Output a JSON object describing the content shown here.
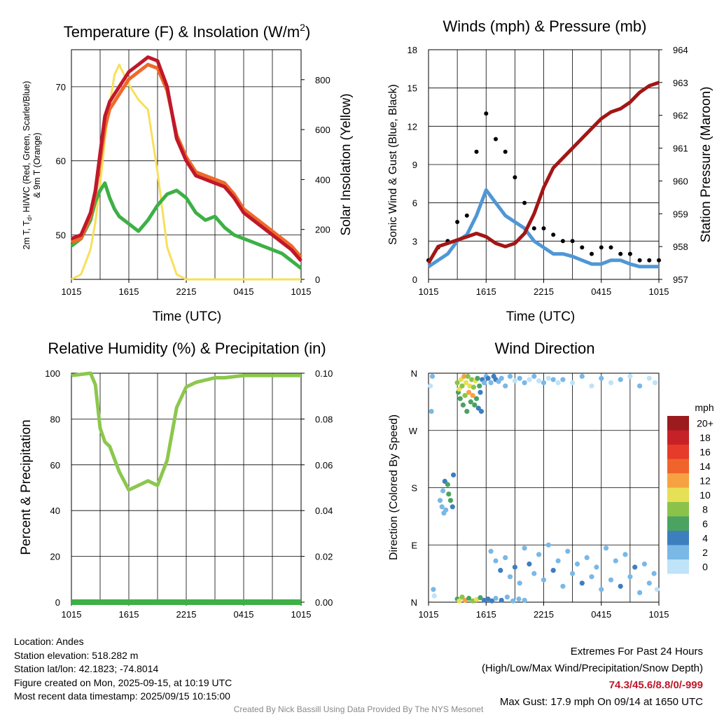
{
  "panels": {
    "temperature": {
      "title_main": "Temperature (F) & Insolation (W/m",
      "title_sup": "2",
      "title_end": ")",
      "ylabel_line1_a": "2m T, T",
      "ylabel_line1_sub": "d",
      "ylabel_line1_b": ", HI/WC (Red, Green, Scarlet/Blue)",
      "ylabel_line2": "& 9m T (Orange)",
      "ylabel_right": "Solar Insolation (Yellow)",
      "xlabel": "Time (UTC)"
    },
    "winds": {
      "title": "Winds (mph) & Pressure (mb)",
      "ylabel_left": "Sonic Wind & Gust (Blue, Black)",
      "ylabel_right": "Station Pressure (Maroon)",
      "xlabel": "Time (UTC)"
    },
    "humidity": {
      "title": "Relative Humidity (%) & Precipitation (in)",
      "ylabel": "Percent & Precipitation"
    },
    "direction": {
      "title": "Wind Direction",
      "ylabel": "Direction (Colored By Speed)",
      "legend_title": "mph"
    }
  },
  "chart_data": [
    {
      "type": "line",
      "title": "Temperature (F) & Insolation (W/m2)",
      "xlabel": "Time (UTC)",
      "ylabel": "2m T, Td, HI/WC (Red, Green, Scarlet/Blue) & 9m T (Orange)",
      "y2label": "Solar Insolation (Yellow)",
      "x_ticks": [
        "1015",
        "1615",
        "2215",
        "0415",
        "1015"
      ],
      "ylim": [
        44,
        75
      ],
      "y_ticks": [
        50,
        60,
        70
      ],
      "y2lim": [
        0,
        920
      ],
      "y2_ticks": [
        0,
        200,
        400,
        600,
        800
      ],
      "grid": true,
      "x_hours": [
        0,
        1,
        2,
        2.5,
        3,
        3.5,
        4,
        4.5,
        5,
        6,
        7,
        8,
        9,
        10,
        11,
        12,
        13,
        14,
        15,
        16,
        17,
        18,
        19,
        20,
        21,
        22,
        23,
        24
      ],
      "series": [
        {
          "color": "#c0182a",
          "axis": "left",
          "values": [
            49.5,
            50,
            53,
            56,
            61,
            66,
            68,
            69,
            70,
            72,
            73,
            74,
            73.5,
            70,
            63,
            60,
            58,
            57.5,
            57,
            56.5,
            55,
            53,
            52,
            51,
            50,
            49,
            48,
            46.5
          ]
        },
        {
          "color": "#ee6a2a",
          "axis": "left",
          "values": [
            49,
            49.5,
            52.5,
            55.5,
            60,
            64.5,
            67,
            68,
            69,
            71,
            72,
            73,
            72.5,
            69.5,
            63.5,
            60.5,
            58.5,
            58,
            57.5,
            57,
            55.5,
            53.5,
            52.5,
            51.5,
            50.5,
            49.5,
            48.5,
            47
          ]
        },
        {
          "color": "#3db046",
          "axis": "left",
          "values": [
            48.5,
            49.5,
            52,
            54.5,
            56,
            57,
            55,
            53.5,
            52.5,
            51.5,
            50.5,
            52,
            54,
            55.5,
            56,
            55,
            53,
            52,
            52.5,
            51,
            50,
            49.5,
            49,
            48.5,
            48,
            47.5,
            46.5,
            45.5
          ]
        },
        {
          "color": "#f7e05a",
          "axis": "right",
          "values": [
            0,
            20,
            120,
            230,
            380,
            560,
            700,
            820,
            860,
            780,
            720,
            680,
            430,
            130,
            20,
            0,
            0,
            0,
            0,
            0,
            0,
            0,
            0,
            0,
            0,
            0,
            0,
            0
          ]
        }
      ]
    },
    {
      "type": "line",
      "title": "Winds (mph) & Pressure (mb)",
      "xlabel": "Time (UTC)",
      "ylabel": "Sonic Wind & Gust (Blue, Black)",
      "y2label": "Station Pressure (Maroon)",
      "x_ticks": [
        "1015",
        "1615",
        "2215",
        "0415",
        "1015"
      ],
      "ylim": [
        0,
        18
      ],
      "y_ticks": [
        0,
        3,
        6,
        9,
        12,
        15,
        18
      ],
      "y2lim": [
        957,
        964
      ],
      "y2_ticks": [
        957,
        958,
        959,
        960,
        961,
        962,
        963,
        964
      ],
      "grid": true,
      "x_hours": [
        0,
        1,
        2,
        3,
        4,
        5,
        6,
        7,
        8,
        9,
        10,
        11,
        12,
        13,
        14,
        15,
        16,
        17,
        18,
        19,
        20,
        21,
        22,
        23,
        24
      ],
      "series": [
        {
          "name": "Sonic Wind",
          "color": "#4f97d6",
          "axis": "left",
          "values": [
            1,
            1.5,
            2,
            3,
            3.5,
            5,
            7,
            6,
            5,
            4.5,
            4,
            3,
            2.5,
            2,
            2,
            1.8,
            1.5,
            1.2,
            1.2,
            1.5,
            1.5,
            1.2,
            1,
            1,
            1
          ]
        },
        {
          "name": "Gust",
          "color": "#000000",
          "axis": "left",
          "values": [
            1.5,
            2.5,
            3,
            4.5,
            5,
            10,
            13,
            11,
            10,
            8,
            6,
            4,
            4,
            3.5,
            3,
            3,
            2.5,
            2,
            2.5,
            2.5,
            2,
            2,
            1.5,
            1.5,
            1.5
          ]
        },
        {
          "name": "Station Pressure",
          "color": "#a21616",
          "axis": "right",
          "values": [
            957.5,
            958.0,
            958.1,
            958.2,
            958.3,
            958.4,
            958.3,
            958.1,
            958.0,
            958.1,
            958.4,
            959.0,
            959.8,
            960.4,
            960.7,
            961.0,
            961.3,
            961.6,
            961.9,
            962.1,
            962.2,
            962.4,
            962.7,
            962.9,
            963.0
          ]
        }
      ]
    },
    {
      "type": "line",
      "title": "Relative Humidity (%) & Precipitation (in)",
      "ylabel": "Percent & Precipitation",
      "x_ticks": [
        "1015",
        "1615",
        "2215",
        "0415",
        "1015"
      ],
      "ylim": [
        0,
        100
      ],
      "y_ticks": [
        0,
        20,
        40,
        60,
        80,
        100
      ],
      "y2lim": [
        0,
        0.1
      ],
      "y2_ticks": [
        "0.00",
        "0.02",
        "0.04",
        "0.06",
        "0.08",
        "0.10"
      ],
      "grid": true,
      "x_hours": [
        0,
        1,
        2,
        2.5,
        3,
        3.5,
        4,
        5,
        6,
        7,
        8,
        9,
        10,
        11,
        12,
        13,
        14,
        15,
        16,
        17,
        18,
        19,
        20,
        21,
        22,
        23,
        24
      ],
      "series": [
        {
          "name": "RH",
          "color": "#8cc74e",
          "axis": "left",
          "values": [
            99,
            99.5,
            100,
            95,
            76,
            70,
            68,
            57,
            49,
            51,
            53,
            51,
            62,
            85,
            94,
            96,
            97,
            98,
            98,
            98.5,
            99,
            99,
            99,
            99,
            99,
            99,
            99
          ]
        },
        {
          "name": "Precipitation",
          "color": "#3db046",
          "axis": "right",
          "values": [
            0,
            0,
            0,
            0,
            0,
            0,
            0,
            0,
            0,
            0,
            0,
            0,
            0,
            0,
            0,
            0,
            0,
            0,
            0,
            0,
            0,
            0,
            0,
            0,
            0,
            0,
            0
          ]
        }
      ]
    },
    {
      "type": "scatter",
      "title": "Wind Direction",
      "ylabel": "Direction (Colored By Speed)",
      "x_ticks": [
        "1015",
        "1615",
        "2215",
        "0415",
        "1015"
      ],
      "y_ticks": [
        "N",
        "E",
        "S",
        "W",
        "N"
      ],
      "ylim": [
        0,
        360
      ],
      "grid": true,
      "legend": {
        "title": "mph",
        "position": "right",
        "labels": [
          "20+",
          "18",
          "16",
          "14",
          "12",
          "10",
          "8",
          "6",
          "4",
          "2",
          "0"
        ],
        "colors": [
          "#9b1b1e",
          "#c62127",
          "#e63a2b",
          "#f0642b",
          "#f7a242",
          "#e5e055",
          "#8bc34a",
          "#4aa360",
          "#3d7ebf",
          "#7ab8e6",
          "#bfe3f7"
        ]
      },
      "points": [
        [
          0.2,
          340,
          0
        ],
        [
          0.4,
          355,
          1
        ],
        [
          0.5,
          20,
          1
        ],
        [
          0.3,
          300,
          1
        ],
        [
          0.6,
          10,
          0
        ],
        [
          1.2,
          160,
          1
        ],
        [
          1.4,
          150,
          1
        ],
        [
          1.5,
          175,
          1
        ],
        [
          1.6,
          140,
          1
        ],
        [
          1.7,
          190,
          2
        ],
        [
          1.8,
          145,
          1
        ],
        [
          2.0,
          185,
          3
        ],
        [
          2.1,
          170,
          3
        ],
        [
          2.3,
          160,
          3
        ],
        [
          2.5,
          150,
          2
        ],
        [
          2.6,
          200,
          2
        ],
        [
          3.0,
          345,
          4
        ],
        [
          3.1,
          330,
          3
        ],
        [
          3.2,
          335,
          5
        ],
        [
          3.3,
          320,
          3
        ],
        [
          3.4,
          350,
          5
        ],
        [
          3.5,
          340,
          4
        ],
        [
          3.6,
          310,
          3
        ],
        [
          3.7,
          355,
          6
        ],
        [
          3.8,
          325,
          4
        ],
        [
          3.9,
          345,
          5
        ],
        [
          4.0,
          300,
          3
        ],
        [
          4.1,
          355,
          4
        ],
        [
          4.2,
          330,
          6
        ],
        [
          4.3,
          340,
          5
        ],
        [
          4.4,
          315,
          3
        ],
        [
          4.5,
          350,
          4
        ],
        [
          4.6,
          325,
          6
        ],
        [
          4.7,
          338,
          4
        ],
        [
          4.8,
          310,
          3
        ],
        [
          4.9,
          348,
          5
        ],
        [
          5.0,
          320,
          3
        ],
        [
          5.1,
          352,
          3
        ],
        [
          5.2,
          305,
          2
        ],
        [
          5.3,
          340,
          3
        ],
        [
          5.4,
          330,
          2
        ],
        [
          5.5,
          300,
          2
        ],
        [
          5.6,
          350,
          2
        ],
        [
          5.8,
          345,
          1
        ],
        [
          6.0,
          355,
          1
        ],
        [
          6.2,
          352,
          2
        ],
        [
          6.5,
          345,
          1
        ],
        [
          6.8,
          355,
          2
        ],
        [
          7.0,
          350,
          2
        ],
        [
          7.3,
          347,
          1
        ],
        [
          7.6,
          352,
          1
        ],
        [
          8.0,
          340,
          1
        ],
        [
          8.5,
          355,
          1
        ],
        [
          9.0,
          348,
          0
        ],
        [
          9.5,
          352,
          1
        ],
        [
          10.0,
          345,
          1
        ],
        [
          10.5,
          350,
          0
        ],
        [
          11.0,
          355,
          1
        ],
        [
          11.5,
          348,
          0
        ],
        [
          12.0,
          345,
          1
        ],
        [
          12.5,
          352,
          0
        ],
        [
          13.0,
          350,
          1
        ],
        [
          13.5,
          345,
          0
        ],
        [
          3.0,
          5,
          3
        ],
        [
          3.2,
          2,
          5
        ],
        [
          3.5,
          8,
          4
        ],
        [
          3.8,
          3,
          6
        ],
        [
          4.2,
          6,
          3
        ],
        [
          4.6,
          2,
          4
        ],
        [
          5.0,
          4,
          5
        ],
        [
          5.4,
          7,
          3
        ],
        [
          5.8,
          3,
          2
        ],
        [
          6.2,
          5,
          2
        ],
        [
          6.6,
          2,
          2
        ],
        [
          7.0,
          6,
          1
        ],
        [
          7.6,
          3,
          2
        ],
        [
          8.2,
          8,
          1
        ],
        [
          8.8,
          2,
          1
        ],
        [
          9.4,
          5,
          1
        ],
        [
          10.0,
          3,
          1
        ],
        [
          6.5,
          80,
          1
        ],
        [
          7.0,
          65,
          1
        ],
        [
          7.5,
          50,
          2
        ],
        [
          8.0,
          70,
          1
        ],
        [
          8.5,
          40,
          1
        ],
        [
          9.0,
          55,
          2
        ],
        [
          9.5,
          30,
          1
        ],
        [
          10.0,
          85,
          1
        ],
        [
          10.5,
          60,
          2
        ],
        [
          11.0,
          45,
          1
        ],
        [
          11.5,
          75,
          1
        ],
        [
          12.0,
          35,
          1
        ],
        [
          12.5,
          90,
          1
        ],
        [
          13.0,
          50,
          2
        ],
        [
          13.5,
          65,
          1
        ],
        [
          14.0,
          25,
          1
        ],
        [
          14.5,
          80,
          1
        ],
        [
          15.0,
          45,
          1
        ],
        [
          15.5,
          60,
          1
        ],
        [
          16.0,
          30,
          2
        ],
        [
          16.5,
          70,
          1
        ],
        [
          17.0,
          40,
          1
        ],
        [
          17.5,
          55,
          1
        ],
        [
          18.0,
          20,
          1
        ],
        [
          18.5,
          85,
          1
        ],
        [
          19.0,
          35,
          1
        ],
        [
          19.5,
          65,
          1
        ],
        [
          20.0,
          25,
          2
        ],
        [
          20.5,
          75,
          1
        ],
        [
          21.0,
          40,
          1
        ],
        [
          21.5,
          55,
          2
        ],
        [
          22.0,
          15,
          1
        ],
        [
          22.5,
          60,
          1
        ],
        [
          23.0,
          30,
          1
        ],
        [
          23.5,
          45,
          1
        ],
        [
          23.8,
          20,
          0
        ],
        [
          14.0,
          350,
          1
        ],
        [
          15.0,
          345,
          0
        ],
        [
          16.0,
          355,
          1
        ],
        [
          17.0,
          340,
          0
        ],
        [
          18.0,
          352,
          1
        ],
        [
          19.0,
          345,
          0
        ],
        [
          20.0,
          350,
          1
        ],
        [
          21.0,
          355,
          0
        ],
        [
          22.0,
          340,
          1
        ],
        [
          23.0,
          352,
          0
        ],
        [
          23.6,
          345,
          0
        ]
      ]
    }
  ],
  "info_left": {
    "location": "Location: Andes",
    "elevation": "Station elevation: 518.282 m",
    "latlon": "Station lat/lon: 42.1823; -74.8014",
    "created": "Figure created on Mon, 2025-09-15, at 10:19 UTC",
    "recent": "Most recent data timestamp: 2025/09/15 10:15:00"
  },
  "info_right": {
    "line1": "Extremes For Past 24 Hours",
    "line2": "(High/Low/Max Wind/Precipitation/Snow Depth)",
    "values": "74.3/45.6/8.8/0/-999",
    "gust": "Max Gust: 17.9 mph On 09/14 at 1650 UTC"
  },
  "credit": "Created By Nick Bassill Using Data Provided By The NYS Mesonet"
}
